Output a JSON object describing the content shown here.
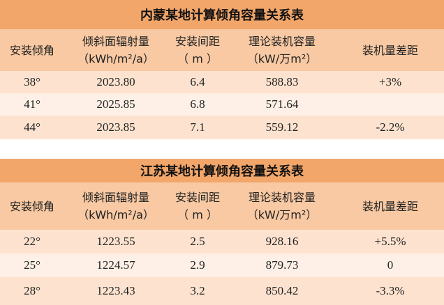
{
  "tables": [
    {
      "title": "内蒙某地计算倾角容量关系表",
      "headers": [
        [
          "安装倾角"
        ],
        [
          "倾斜面辐射量",
          "（kWh/m²/a）"
        ],
        [
          "安装间距",
          "（ m ）"
        ],
        [
          "理论装机容量",
          "（kW/万m²）"
        ],
        [
          "装机量差距"
        ]
      ],
      "rows": [
        [
          "38°",
          "2023.80",
          "6.4",
          "588.83",
          "+3%"
        ],
        [
          "41°",
          "2025.85",
          "6.8",
          "571.64"
        ],
        [
          "44°",
          "2023.85",
          "7.1",
          "559.12",
          "-2.2%"
        ]
      ]
    },
    {
      "title": "江苏某地计算倾角容量关系表",
      "headers": [
        [
          "安装倾角"
        ],
        [
          "倾斜面辐射量",
          "（kWh/m²/a）"
        ],
        [
          "安装间距",
          "（ m ）"
        ],
        [
          "理论装机容量",
          "（kW/万m²）"
        ],
        [
          "装机量差距"
        ]
      ],
      "rows": [
        [
          "22°",
          "1223.55",
          "2.5",
          "928.16",
          "+5.5%"
        ],
        [
          "25°",
          "1224.57",
          "2.9",
          "879.73",
          "0"
        ],
        [
          "28°",
          "1223.43",
          "3.2",
          "850.42",
          "-3.3%"
        ]
      ]
    }
  ]
}
